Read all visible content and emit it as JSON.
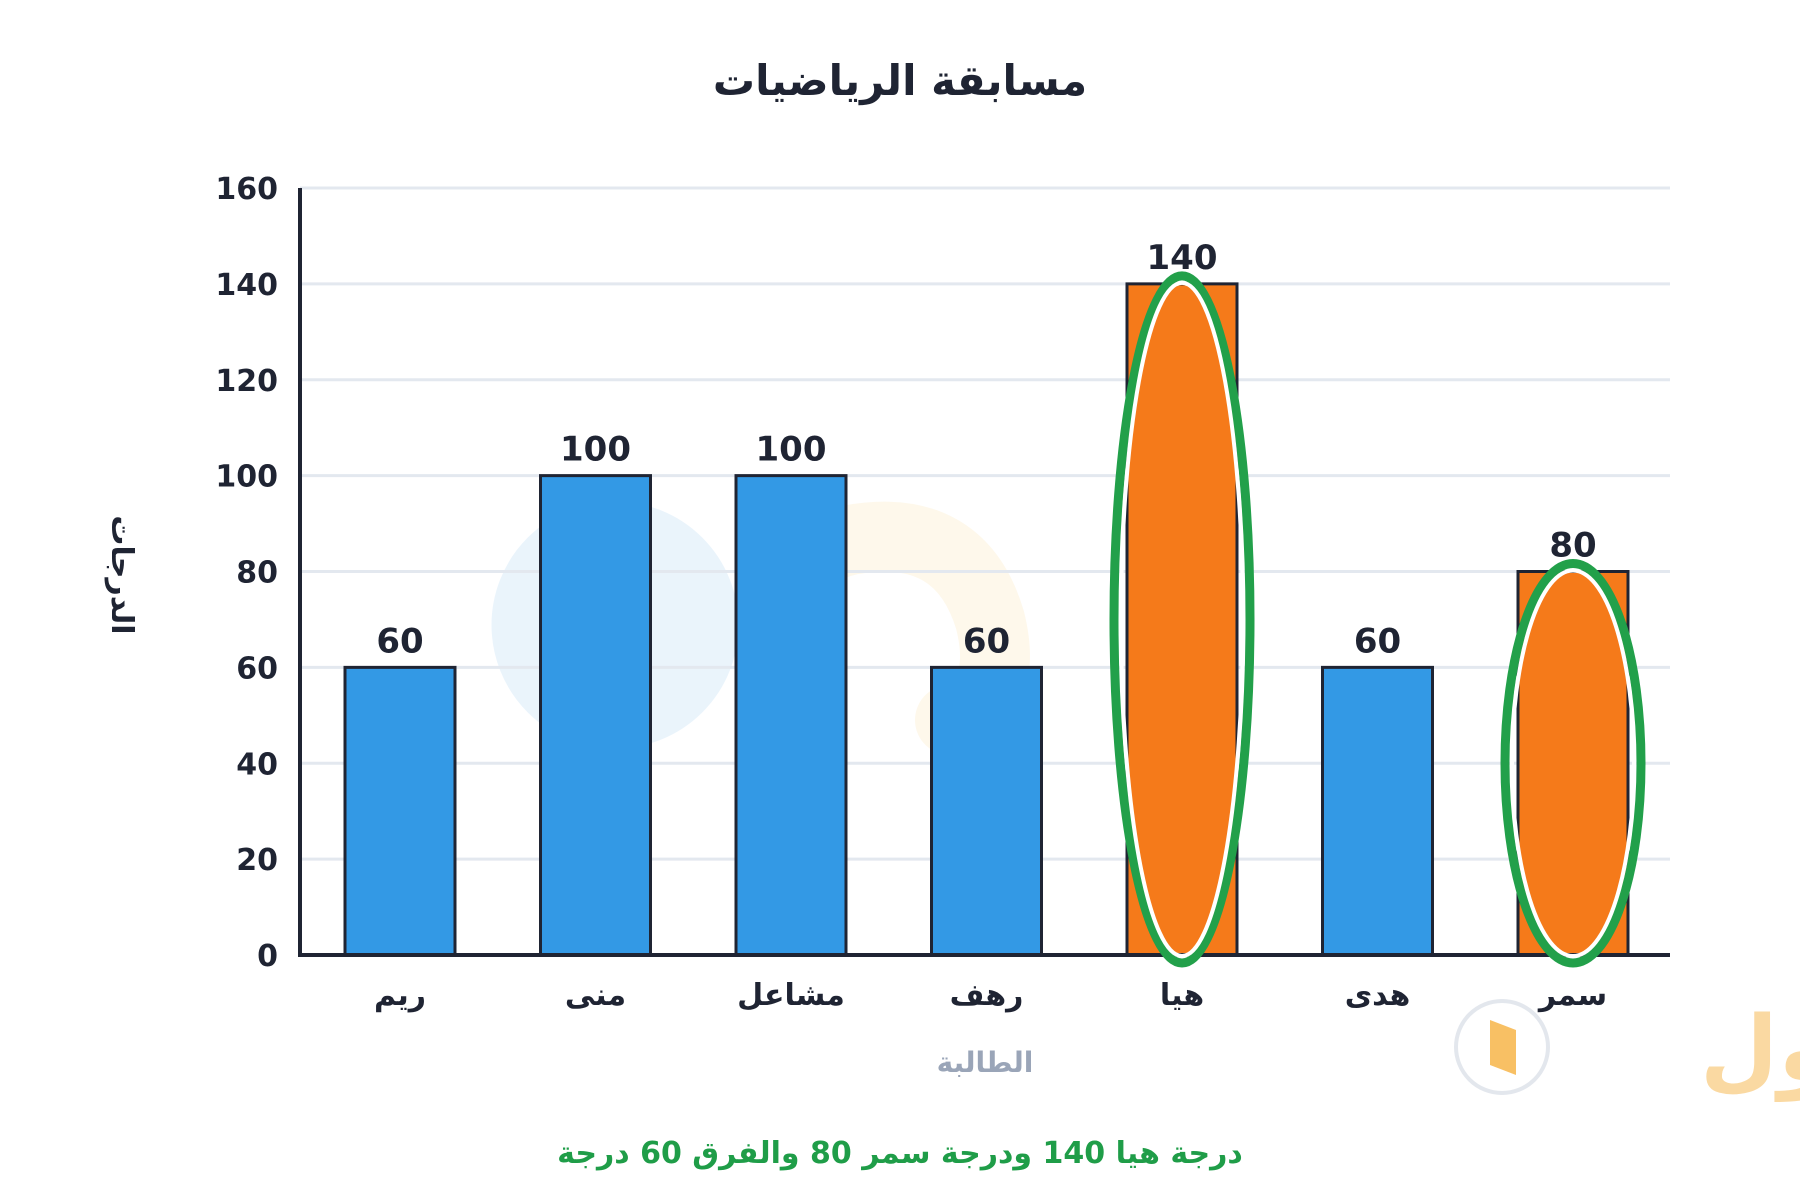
{
  "chart_data": {
    "type": "bar",
    "title": "مسابقة الرياضيات",
    "xlabel": "الطالبة",
    "ylabel": "الدرجات",
    "categories": [
      "ريم",
      "منى",
      "مشاعل",
      "رهف",
      "هيا",
      "هدى",
      "سمر"
    ],
    "values": [
      60,
      100,
      100,
      60,
      140,
      60,
      80
    ],
    "ylim": [
      0,
      160
    ],
    "yticks": [
      0,
      20,
      40,
      60,
      80,
      100,
      120,
      140,
      160
    ],
    "grid": true,
    "bar_color": "#3399e5",
    "highlight_color": "#f57a1a",
    "highlight_ring_color": "#22a04a",
    "highlighted_categories": [
      "هيا",
      "سمر"
    ]
  },
  "footnote": "درجة هيا 140 ودرجة سمر 80 والفرق 60 درجة",
  "watermark": {
    "logo_text": "حلول"
  }
}
